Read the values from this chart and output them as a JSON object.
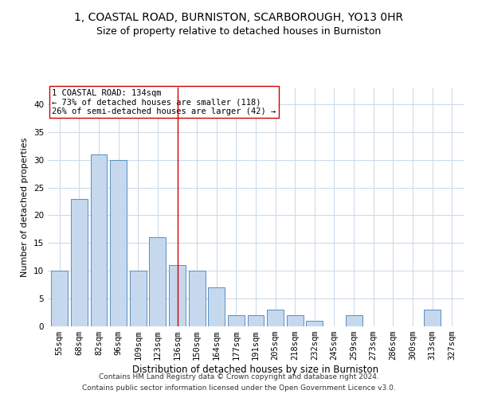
{
  "title": "1, COASTAL ROAD, BURNISTON, SCARBOROUGH, YO13 0HR",
  "subtitle": "Size of property relative to detached houses in Burniston",
  "xlabel": "Distribution of detached houses by size in Burniston",
  "ylabel": "Number of detached properties",
  "categories": [
    "55sqm",
    "68sqm",
    "82sqm",
    "96sqm",
    "109sqm",
    "123sqm",
    "136sqm",
    "150sqm",
    "164sqm",
    "177sqm",
    "191sqm",
    "205sqm",
    "218sqm",
    "232sqm",
    "245sqm",
    "259sqm",
    "273sqm",
    "286sqm",
    "300sqm",
    "313sqm",
    "327sqm"
  ],
  "values": [
    10,
    23,
    31,
    30,
    10,
    16,
    11,
    10,
    7,
    2,
    2,
    3,
    2,
    1,
    0,
    2,
    0,
    0,
    0,
    3,
    0
  ],
  "bar_color": "#c5d8ed",
  "bar_edge_color": "#5a8fc0",
  "vline_x": 6,
  "vline_color": "#cc0000",
  "annotation_text": "1 COASTAL ROAD: 134sqm\n← 73% of detached houses are smaller (118)\n26% of semi-detached houses are larger (42) →",
  "annotation_box_color": "#ffffff",
  "annotation_box_edge_color": "#cc0000",
  "ylim": [
    0,
    43
  ],
  "yticks": [
    0,
    5,
    10,
    15,
    20,
    25,
    30,
    35,
    40
  ],
  "footnote1": "Contains HM Land Registry data © Crown copyright and database right 2024.",
  "footnote2": "Contains public sector information licensed under the Open Government Licence v3.0.",
  "background_color": "#ffffff",
  "grid_color": "#c8d8e8",
  "title_fontsize": 10,
  "subtitle_fontsize": 9,
  "xlabel_fontsize": 8.5,
  "ylabel_fontsize": 8,
  "tick_fontsize": 7.5,
  "annotation_fontsize": 7.5,
  "footnote_fontsize": 6.5
}
